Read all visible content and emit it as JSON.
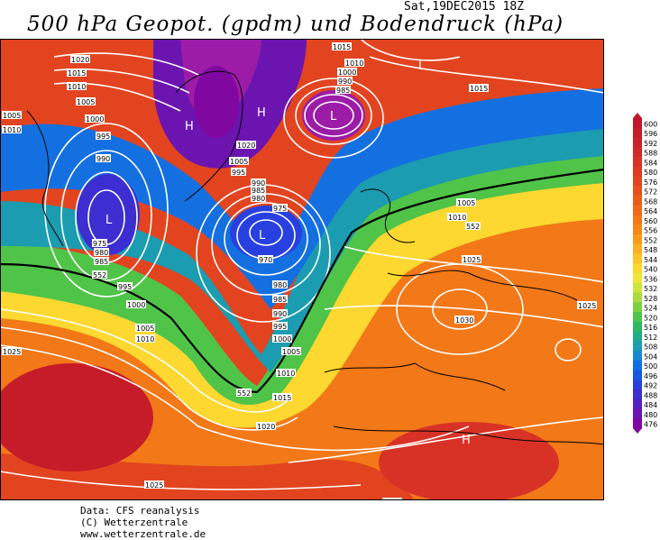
{
  "title": "500 hPa Geopot. (gpdm) und Bodendruck (hPa)",
  "date": "Sat,19DEC2015 18Z",
  "footer": {
    "line1": "Data: CFS reanalysis",
    "line2": "(C) Wetterzentrale",
    "line3": "www.wetterzentrale.de"
  },
  "legend": {
    "values": [
      "600",
      "596",
      "592",
      "588",
      "584",
      "580",
      "576",
      "572",
      "568",
      "564",
      "560",
      "556",
      "552",
      "548",
      "544",
      "540",
      "536",
      "532",
      "528",
      "524",
      "520",
      "516",
      "512",
      "508",
      "504",
      "500",
      "496",
      "492",
      "488",
      "484",
      "480",
      "476"
    ],
    "colors": [
      "#c0182a",
      "#c61c2a",
      "#cc222a",
      "#d22a28",
      "#d83226",
      "#de3a24",
      "#e24420",
      "#e6501e",
      "#ea5c1c",
      "#ee6a1a",
      "#f27818",
      "#f6881a",
      "#f89a1e",
      "#fab024",
      "#fcc42a",
      "#fcd830",
      "#f0e436",
      "#cce43c",
      "#a8dc40",
      "#7cd044",
      "#50c448",
      "#30b860",
      "#24ac88",
      "#1c9cb0",
      "#1888d0",
      "#1470e0",
      "#1856e8",
      "#2840e0",
      "#3c2ed0",
      "#5420c0",
      "#6c14b0",
      "#8008a0"
    ]
  },
  "map": {
    "pressure_labels": [
      {
        "text": "1020"
      },
      {
        "text": "1015"
      },
      {
        "text": "1010"
      },
      {
        "text": "1005"
      },
      {
        "text": "1000"
      },
      {
        "text": "995"
      },
      {
        "text": "990"
      },
      {
        "text": "975"
      },
      {
        "text": "980"
      },
      {
        "text": "985"
      },
      {
        "text": "552"
      },
      {
        "text": "995"
      },
      {
        "text": "1000"
      },
      {
        "text": "1005"
      },
      {
        "text": "1010"
      },
      {
        "text": "1025"
      },
      {
        "text": "1010"
      },
      {
        "text": "1005"
      },
      {
        "text": "1020"
      },
      {
        "text": "1005"
      },
      {
        "text": "995"
      },
      {
        "text": "990"
      },
      {
        "text": "985"
      },
      {
        "text": "980"
      },
      {
        "text": "975"
      },
      {
        "text": "970"
      },
      {
        "text": "980"
      },
      {
        "text": "985"
      },
      {
        "text": "990"
      },
      {
        "text": "995"
      },
      {
        "text": "1000"
      },
      {
        "text": "1005"
      },
      {
        "text": "1010"
      },
      {
        "text": "552"
      },
      {
        "text": "1015"
      },
      {
        "text": "1020"
      },
      {
        "text": "1025"
      },
      {
        "text": "1015"
      },
      {
        "text": "1010"
      },
      {
        "text": "1000"
      },
      {
        "text": "990"
      },
      {
        "text": "985"
      },
      {
        "text": "1015"
      },
      {
        "text": "1005"
      },
      {
        "text": "1010"
      },
      {
        "text": "552"
      },
      {
        "text": "1025"
      },
      {
        "text": "1030"
      },
      {
        "text": "1025"
      },
      {
        "text": "1025"
      }
    ],
    "centers": [
      {
        "text": "L"
      },
      {
        "text": "L"
      },
      {
        "text": "L"
      },
      {
        "text": "L"
      },
      {
        "text": "H"
      },
      {
        "text": "H"
      },
      {
        "text": "H"
      }
    ]
  }
}
